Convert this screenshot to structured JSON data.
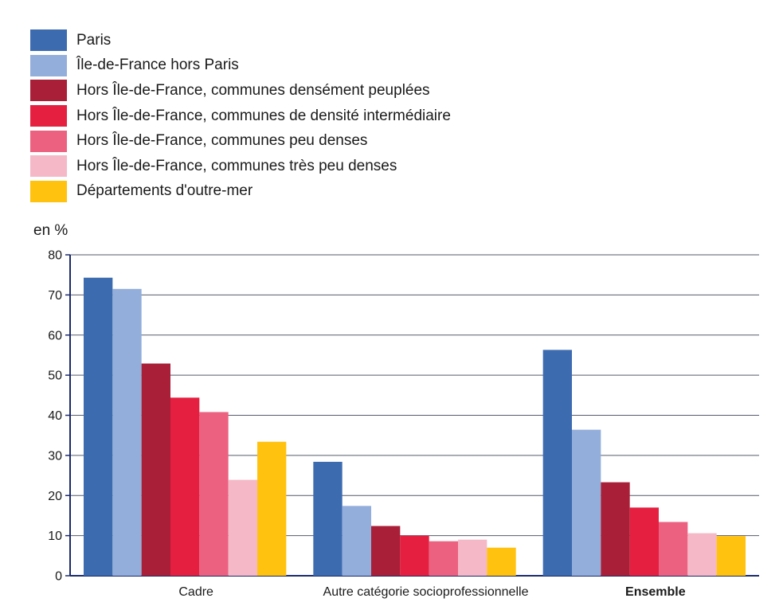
{
  "chart_data": {
    "type": "bar",
    "ylabel": "en %",
    "ylim": [
      0,
      80
    ],
    "yticks": [
      "0",
      "10",
      "20",
      "30",
      "40",
      "50",
      "60",
      "70",
      "80"
    ],
    "grid": true,
    "legend_position": "top-left",
    "categories": [
      "Cadre",
      "Autre catégorie socioprofessionnelle",
      "Ensemble"
    ],
    "bold_categories": [
      "Ensemble"
    ],
    "series": [
      {
        "name": "Paris",
        "color": "#3c6bb0",
        "values": [
          74.3,
          28.4,
          56.3
        ]
      },
      {
        "name": "Île-de-France hors Paris",
        "color": "#93aedb",
        "values": [
          71.5,
          17.4,
          36.4
        ]
      },
      {
        "name": "Hors Île-de-France, communes densément peuplées",
        "color": "#a81f37",
        "values": [
          52.9,
          12.4,
          23.3
        ]
      },
      {
        "name": "Hors Île-de-France, communes de densité intermédiaire",
        "color": "#e51f40",
        "values": [
          44.4,
          10.0,
          17.0
        ]
      },
      {
        "name": "Hors Île-de-France, communes peu denses",
        "color": "#ec6180",
        "values": [
          40.8,
          8.6,
          13.4
        ]
      },
      {
        "name": "Hors Île-de-France, communes très peu denses",
        "color": "#f5b8c6",
        "values": [
          23.9,
          9.0,
          10.6
        ]
      },
      {
        "name": "Départements d'outre-mer",
        "color": "#ffc20e",
        "values": [
          33.4,
          7.0,
          9.9
        ]
      }
    ]
  }
}
